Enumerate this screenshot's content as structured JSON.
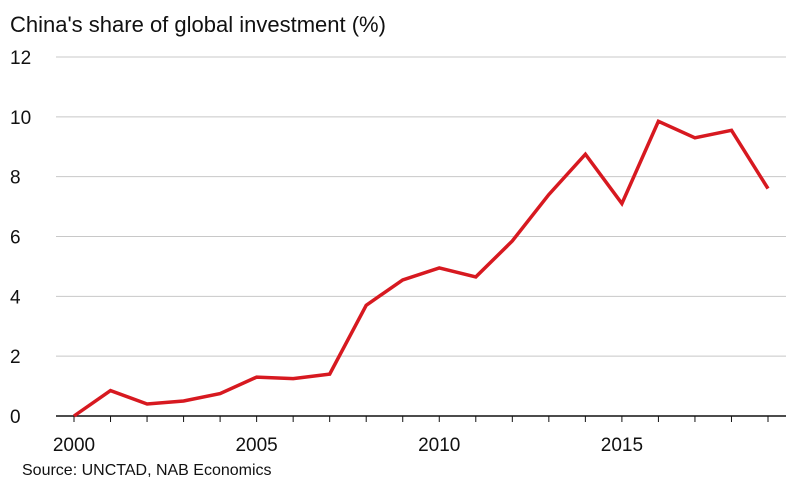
{
  "chart_data": {
    "type": "line",
    "title": "China's share of global investment (%)",
    "source": "Source: UNCTAD, NAB Economics",
    "xlabel": "",
    "ylabel": "",
    "xlim": [
      2000,
      2019
    ],
    "ylim": [
      0,
      12
    ],
    "yticks": [
      0,
      2,
      4,
      6,
      8,
      10,
      12
    ],
    "xticks": [
      2000,
      2005,
      2010,
      2015
    ],
    "grid": true,
    "line_color": "#d71920",
    "series": [
      {
        "x": [
          2000,
          2001,
          2002,
          2003,
          2004,
          2005,
          2006,
          2007,
          2008,
          2009,
          2010,
          2011,
          2012,
          2013,
          2014,
          2015,
          2016,
          2017,
          2018,
          2019
        ],
        "values": [
          0.0,
          0.85,
          0.4,
          0.5,
          0.75,
          1.3,
          1.25,
          1.4,
          3.7,
          4.55,
          4.95,
          4.65,
          5.85,
          7.4,
          8.75,
          7.1,
          9.85,
          9.3,
          9.55,
          7.6
        ]
      }
    ]
  }
}
